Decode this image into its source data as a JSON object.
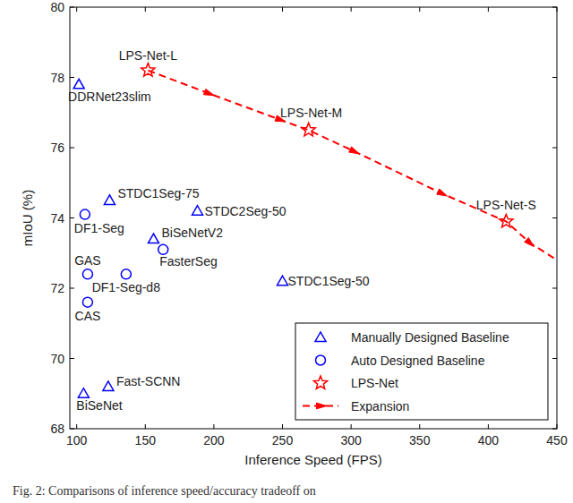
{
  "chart_data": {
    "type": "scatter",
    "x_label": "Inference Speed (FPS)",
    "y_label": "mIoU (%)",
    "caption": "Fig. 2: Comparisons of inference speed/accuracy tradeoff on",
    "xlim": [
      95,
      450
    ],
    "xticks": [
      100,
      150,
      200,
      250,
      300,
      350,
      400,
      450
    ],
    "ylim": [
      68,
      80
    ],
    "yticks": [
      68,
      70,
      72,
      74,
      76,
      78,
      80
    ],
    "grid": false,
    "legend": "lower right",
    "series": [
      {
        "name": "Manually Designed Baseline",
        "color": "#0000ff",
        "marker": "triangle",
        "labels": [
          "DDRNet23slim",
          "STDC1Seg-75",
          "STDC2Seg-50",
          "BiSeNetV2",
          "STDC1Seg-50",
          "Fast-SCNN",
          "BiSeNet"
        ],
        "x": [
          101.6,
          124,
          188,
          156,
          250,
          123,
          105
        ],
        "values": [
          77.8,
          74.5,
          74.2,
          73.4,
          72.2,
          69.2,
          69.0
        ]
      },
      {
        "name": "Auto Designed Baseline",
        "color": "#0000ff",
        "marker": "circle",
        "labels": [
          "DF1-Seg",
          "FasterSeg",
          "GAS",
          "DF1-Seg-d8",
          "CAS"
        ],
        "x": [
          106,
          163,
          108,
          136,
          108
        ],
        "values": [
          74.1,
          73.1,
          72.4,
          72.4,
          71.6
        ]
      },
      {
        "name": "LPS-Net",
        "color": "#ff0000",
        "marker": "star",
        "labels": [
          "LPS-Net-L",
          "LPS-Net-M",
          "LPS-Net-S"
        ],
        "x": [
          152,
          269,
          413
        ],
        "values": [
          78.2,
          76.5,
          73.9
        ]
      },
      {
        "name": "Expansion",
        "color": "#ff0000",
        "type": "line",
        "line_style": "dashed",
        "marker": "arrow",
        "x": [
          152,
          196,
          248,
          269,
          302,
          366,
          413,
          430,
          450
        ],
        "values": [
          78.2,
          77.55,
          76.8,
          76.5,
          75.9,
          74.7,
          73.9,
          73.3,
          72.8
        ]
      }
    ]
  }
}
